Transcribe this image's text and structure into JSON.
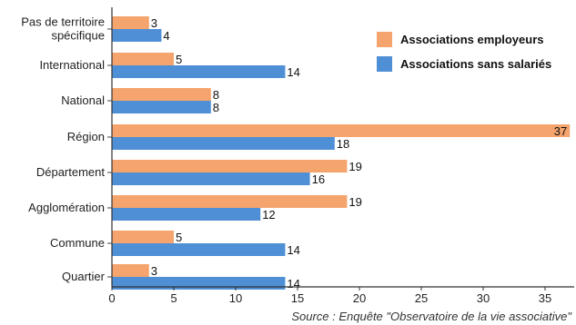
{
  "chart_data": {
    "type": "bar",
    "orientation": "horizontal",
    "categories": [
      "Pas de territoire spécifique",
      "International",
      "National",
      "Région",
      "Département",
      "Agglomération",
      "Commune",
      "Quartier"
    ],
    "category_lines": [
      [
        "Pas de territoire",
        "spécifique"
      ],
      [
        "International"
      ],
      [
        "National"
      ],
      [
        "Région"
      ],
      [
        "Département"
      ],
      [
        "Agglomération"
      ],
      [
        "Commune"
      ],
      [
        "Quartier"
      ]
    ],
    "series": [
      {
        "name": "Associations employeurs",
        "color": "#F4A46C",
        "values": [
          3,
          5,
          8,
          37,
          19,
          19,
          5,
          3
        ]
      },
      {
        "name": "Associations sans salariés",
        "color": "#4F8FD6",
        "values": [
          4,
          14,
          8,
          18,
          16,
          12,
          14,
          14
        ]
      }
    ],
    "xlim": [
      0,
      37
    ],
    "xticks": [
      0,
      5,
      10,
      15,
      20,
      25,
      30,
      35
    ],
    "legend_position": "top-right",
    "grid": false
  },
  "source": "Source : Enquête \"Observatoire de la vie associative\""
}
